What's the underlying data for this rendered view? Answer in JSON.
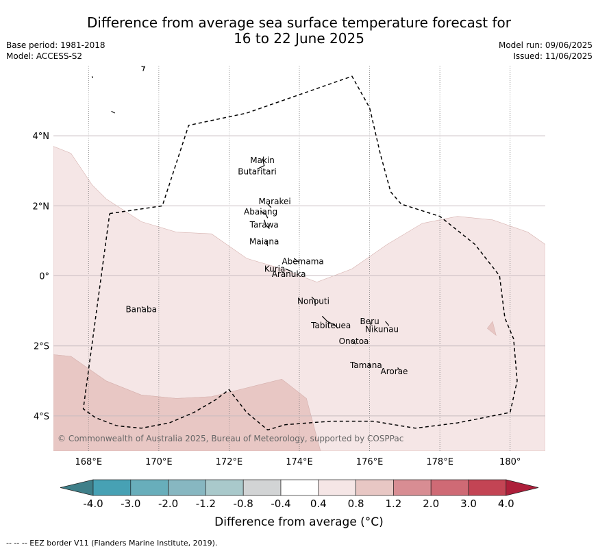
{
  "title_line1": "Difference from average sea surface temperature forecast for",
  "title_line2": "16 to 22 June 2025",
  "base_period": "Base period: 1981-2018",
  "model": "Model: ACCESS-S2",
  "model_run": "Model run: 09/06/2025",
  "issued": "Issued: 11/06/2025",
  "copyright": "© Commonwealth of Australia 2025, Bureau of Meteorology, supported by COSPPac",
  "colorbar_label": "Difference from average (°C)",
  "footer": "--  --  -- EEZ border V11 (Flanders Marine Institute, 2019).",
  "map": {
    "lon_range": [
      167,
      181
    ],
    "lat_range": [
      -5,
      6
    ],
    "lon_ticks": [
      {
        "value": 168,
        "label": "168°E"
      },
      {
        "value": 170,
        "label": "170°E"
      },
      {
        "value": 172,
        "label": "172°E"
      },
      {
        "value": 174,
        "label": "174°E"
      },
      {
        "value": 176,
        "label": "176°E"
      },
      {
        "value": 178,
        "label": "178°E"
      },
      {
        "value": 180,
        "label": "180°"
      }
    ],
    "lat_ticks": [
      {
        "value": 4,
        "label": "4°N"
      },
      {
        "value": 2,
        "label": "2°N"
      },
      {
        "value": 0,
        "label": "0°"
      },
      {
        "value": -2,
        "label": "2°S"
      },
      {
        "value": -4,
        "label": "4°S"
      }
    ],
    "places": [
      {
        "name": "Makin",
        "lon": 172.95,
        "lat": 3.22
      },
      {
        "name": "Butaritari",
        "lon": 172.8,
        "lat": 2.9
      },
      {
        "name": "Marakei",
        "lon": 173.3,
        "lat": 2.05
      },
      {
        "name": "Abaiang",
        "lon": 172.9,
        "lat": 1.75
      },
      {
        "name": "Tarawa",
        "lon": 173.0,
        "lat": 1.38
      },
      {
        "name": "Maiana",
        "lon": 173.0,
        "lat": 0.9
      },
      {
        "name": "Abemama",
        "lon": 174.1,
        "lat": 0.33
      },
      {
        "name": "Kuria",
        "lon": 173.3,
        "lat": 0.12
      },
      {
        "name": "Aranuka",
        "lon": 173.7,
        "lat": -0.03
      },
      {
        "name": "Nonouti",
        "lon": 174.4,
        "lat": -0.8
      },
      {
        "name": "Banaba",
        "lon": 169.5,
        "lat": -1.04
      },
      {
        "name": "Beru",
        "lon": 176.0,
        "lat": -1.38
      },
      {
        "name": "Nikunau",
        "lon": 176.35,
        "lat": -1.6
      },
      {
        "name": "Tabiteuea",
        "lon": 174.9,
        "lat": -1.5
      },
      {
        "name": "Onotoa",
        "lon": 175.55,
        "lat": -1.95
      },
      {
        "name": "Tamana",
        "lon": 175.9,
        "lat": -2.63
      },
      {
        "name": "Arorae",
        "lon": 176.7,
        "lat": -2.81
      }
    ],
    "anomaly_regions": [
      {
        "band": "0.4 to 0.8",
        "color": "#f5e6e6",
        "polygon": [
          [
            167,
            3.7
          ],
          [
            167.5,
            3.5
          ],
          [
            168.1,
            2.6
          ],
          [
            168.5,
            2.2
          ],
          [
            169.5,
            1.55
          ],
          [
            170.5,
            1.25
          ],
          [
            171.5,
            1.2
          ],
          [
            172.5,
            0.5
          ],
          [
            173.5,
            0.2
          ],
          [
            174.5,
            -0.18
          ],
          [
            175.5,
            0.2
          ],
          [
            176.5,
            0.9
          ],
          [
            177.5,
            1.5
          ],
          [
            178.5,
            1.7
          ],
          [
            179.5,
            1.6
          ],
          [
            180.5,
            1.25
          ],
          [
            181,
            0.9
          ],
          [
            181,
            -5
          ],
          [
            174.6,
            -5
          ],
          [
            174.2,
            -3.5
          ],
          [
            173.5,
            -2.95
          ],
          [
            172.5,
            -3.2
          ],
          [
            171.5,
            -3.45
          ],
          [
            170.5,
            -3.5
          ],
          [
            169.5,
            -3.4
          ],
          [
            168.5,
            -3.0
          ],
          [
            167.5,
            -2.3
          ],
          [
            167,
            -2.25
          ]
        ]
      },
      {
        "band": "0.8 to 1.2",
        "color": "#e8c7c4",
        "polygon": [
          [
            167,
            -2.25
          ],
          [
            167.5,
            -2.3
          ],
          [
            168.5,
            -3.0
          ],
          [
            169.5,
            -3.4
          ],
          [
            170.5,
            -3.5
          ],
          [
            171.5,
            -3.45
          ],
          [
            172.5,
            -3.2
          ],
          [
            173.5,
            -2.95
          ],
          [
            174.2,
            -3.5
          ],
          [
            174.6,
            -5
          ],
          [
            167,
            -5
          ]
        ]
      },
      {
        "band": "0.8 to 1.2",
        "color": "#e8c7c4",
        "polygon": [
          [
            179.35,
            -1.5
          ],
          [
            179.5,
            -1.3
          ],
          [
            179.6,
            -1.7
          ]
        ]
      }
    ],
    "eez_border": [
      [
        168.6,
        1.78
      ],
      [
        170.1,
        2.0
      ],
      [
        170.85,
        4.3
      ],
      [
        172.5,
        4.65
      ],
      [
        175.5,
        5.7
      ],
      [
        176.0,
        4.8
      ],
      [
        176.3,
        3.5
      ],
      [
        176.6,
        2.4
      ],
      [
        176.9,
        2.05
      ],
      [
        178.0,
        1.7
      ],
      [
        179.0,
        0.9
      ],
      [
        179.7,
        0.0
      ],
      [
        179.85,
        -1.2
      ],
      [
        180.1,
        -1.8
      ],
      [
        180.2,
        -3.0
      ],
      [
        180.0,
        -3.9
      ],
      [
        178.5,
        -4.2
      ],
      [
        177.3,
        -4.35
      ],
      [
        176.1,
        -4.15
      ],
      [
        174.9,
        -4.15
      ],
      [
        173.6,
        -4.25
      ],
      [
        173.1,
        -4.4
      ],
      [
        172.5,
        -3.9
      ],
      [
        172.0,
        -3.25
      ],
      [
        171.6,
        -3.55
      ],
      [
        171.0,
        -3.9
      ],
      [
        170.3,
        -4.2
      ],
      [
        169.5,
        -4.35
      ],
      [
        168.8,
        -4.28
      ],
      [
        168.2,
        -4.05
      ],
      [
        167.85,
        -3.8
      ],
      [
        168.6,
        1.78
      ]
    ],
    "land_marks": [
      [
        [
          172.95,
          3.35
        ],
        [
          173.0,
          3.15
        ],
        [
          172.8,
          3.05
        ]
      ],
      [
        [
          172.9,
          1.85
        ],
        [
          173.05,
          1.75
        ],
        [
          173.1,
          1.65
        ]
      ],
      [
        [
          173.0,
          1.6
        ],
        [
          173.05,
          1.45
        ],
        [
          173.15,
          1.35
        ]
      ],
      [
        [
          173.1,
          2.05
        ],
        [
          173.2,
          1.95
        ]
      ],
      [
        [
          173.05,
          1.0
        ],
        [
          173.1,
          0.85
        ]
      ],
      [
        [
          173.85,
          0.5
        ],
        [
          174.0,
          0.38
        ]
      ],
      [
        [
          173.6,
          0.2
        ],
        [
          173.8,
          0.12
        ]
      ],
      [
        [
          174.35,
          -0.6
        ],
        [
          174.45,
          -0.7
        ],
        [
          174.45,
          -0.85
        ]
      ],
      [
        [
          174.65,
          -1.15
        ],
        [
          174.8,
          -1.3
        ],
        [
          175.0,
          -1.4
        ],
        [
          175.1,
          -1.5
        ]
      ],
      [
        [
          176.0,
          -1.3
        ],
        [
          176.05,
          -1.42
        ]
      ],
      [
        [
          176.45,
          -1.3
        ],
        [
          176.55,
          -1.42
        ]
      ],
      [
        [
          175.5,
          -1.85
        ],
        [
          175.6,
          -1.95
        ]
      ],
      [
        [
          175.98,
          -2.5
        ],
        [
          176.02,
          -2.6
        ]
      ],
      [
        [
          176.8,
          -2.62
        ],
        [
          176.85,
          -2.7
        ]
      ],
      [
        [
          169.52,
          -0.88
        ],
        [
          169.55,
          -0.92
        ]
      ],
      [
        [
          168.65,
          4.7
        ],
        [
          168.75,
          4.65
        ]
      ],
      [
        [
          169.5,
          6.0
        ],
        [
          169.6,
          5.95
        ]
      ],
      [
        [
          169.6,
          6.0
        ],
        [
          169.55,
          5.85
        ]
      ],
      [
        [
          168.1,
          5.7
        ],
        [
          168.12,
          5.65
        ]
      ]
    ]
  },
  "colorbar": {
    "colors": [
      "#3f7f89",
      "#47a1b4",
      "#68aebb",
      "#87b7c1",
      "#a9c9cb",
      "#d2d4d5",
      "#ffffff",
      "#f5e6e6",
      "#e8c7c4",
      "#d88d93",
      "#cf6a75",
      "#c34454",
      "#ad1f3a"
    ],
    "ticks": [
      "-4.0",
      "-3.0",
      "-2.0",
      "-1.2",
      "-0.8",
      "-0.4",
      "0.4",
      "0.8",
      "1.2",
      "2.0",
      "3.0",
      "4.0"
    ]
  }
}
